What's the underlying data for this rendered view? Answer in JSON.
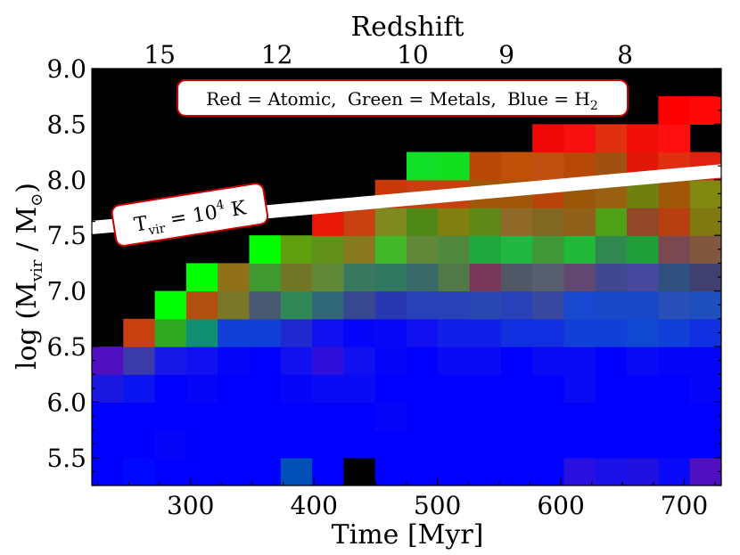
{
  "chart_data": {
    "type": "heatmap",
    "legend": {
      "red": "Red = Atomic,",
      "green": "Green = Metals,",
      "blue_prefix": "Blue = H",
      "blue_sub": "2"
    },
    "xlabel": "Time [Myr]",
    "ylabel_prefix": "log (M",
    "ylabel_sub": "vir",
    "ylabel_mid": " / M",
    "ylabel_sub2": "⊙",
    "ylabel_suffix": ")",
    "top_axis_title": "Redshift",
    "xlim": [
      220,
      730
    ],
    "ylim": [
      5.25,
      9.0
    ],
    "x_ticks": [
      300,
      400,
      500,
      600,
      700
    ],
    "y_ticks": [
      5.5,
      6.0,
      6.5,
      7.0,
      7.5,
      8.0,
      8.5,
      9.0
    ],
    "x_tick_labels": [
      "300",
      "400",
      "500",
      "600",
      "700"
    ],
    "y_tick_labels": [
      "5.5",
      "6.0",
      "6.5",
      "7.0",
      "7.5",
      "8.0",
      "8.5",
      "9.0"
    ],
    "redshift_ticks": [
      {
        "label": "15",
        "time": 275
      },
      {
        "label": "12",
        "time": 370
      },
      {
        "label": "10",
        "time": 480
      },
      {
        "label": "9",
        "time": 556
      },
      {
        "label": "8",
        "time": 652
      }
    ],
    "tvir_line": {
      "label_prefix": "T",
      "label_sub": "vir",
      "label_mid": " = 10",
      "label_sup": "4",
      "label_suffix": " K",
      "start": [
        220,
        7.57
      ],
      "end": [
        730,
        8.08
      ]
    },
    "grid": {
      "x0": 220,
      "dx": 25.5,
      "y0": 5.25,
      "dy": 0.25,
      "ncols": 20,
      "nrows": 15,
      "background": "#000000",
      "rows": [
        [
          "#0000ff",
          "#0008ff",
          "#0000ff",
          "#0000ff",
          "#0000ff",
          "#0000ff",
          "#0050b8",
          "#0000ff",
          "#000000",
          "#0000ff",
          "#0000ff",
          "#0000ff",
          "#0000ff",
          "#0000ff",
          "#0000ff",
          "#2a10e0",
          "#1a10e8",
          "#2010e0",
          "#0a0af8",
          "#5010c0"
        ],
        [
          "#0000ff",
          "#0000ff",
          "#0505fa",
          "#0000ff",
          "#0000ff",
          "#0000ff",
          "#0000ff",
          "#0000ff",
          "#0000ff",
          "#0000ff",
          "#0000ff",
          "#0000ff",
          "#0000ff",
          "#0000ff",
          "#0000ff",
          "#0000ff",
          "#0000ff",
          "#0000ff",
          "#0000ff",
          "#0000ff"
        ],
        [
          "#0000ff",
          "#0000ff",
          "#0000ff",
          "#0000ff",
          "#0000ff",
          "#0000ff",
          "#0000ff",
          "#0000ff",
          "#0000ff",
          "#0505fa",
          "#0000ff",
          "#0000ff",
          "#0000ff",
          "#0000ff",
          "#0000ff",
          "#0000ff",
          "#0000ff",
          "#0000ff",
          "#0000ff",
          "#0000ff"
        ],
        [
          "#1a18e0",
          "#0a14f0",
          "#0000ff",
          "#0505fa",
          "#0000ff",
          "#0000ff",
          "#0505fa",
          "#0a0af5",
          "#0a0af5",
          "#0000ff",
          "#0000ff",
          "#0000ff",
          "#0000ff",
          "#0000ff",
          "#0000ff",
          "#0a0af5",
          "#0000ff",
          "#0000ff",
          "#0000ff",
          "#0505fa"
        ],
        [
          "#5010c0",
          "#3a3aa8",
          "#1818e8",
          "#1010f0",
          "#0505fa",
          "#0000ff",
          "#1010f0",
          "#3010d8",
          "#1010f0",
          "#0505fa",
          "#0000ff",
          "#0a0af5",
          "#0a0af5",
          "#0000ff",
          "#0a0af5",
          "#0a0af5",
          "#0000ff",
          "#0a0af5",
          "#0505fa",
          "#0505fa"
        ],
        [
          null,
          "#c84010",
          "#30a820",
          "#109070",
          "#1040d8",
          "#1040d8",
          "#2028d0",
          "#1010f0",
          "#0505fa",
          "#0808f8",
          "#1010f0",
          "#1020e8",
          "#1020e8",
          "#1030e0",
          "#1030e0",
          "#1040d8",
          "#1040d8",
          "#1048d0",
          "#1040d8",
          "#1030e0"
        ],
        [
          null,
          null,
          "#00ff00",
          "#b05010",
          "#787828",
          "#485870",
          "#308858",
          "#306878",
          "#384890",
          "#2838b0",
          "#2840b8",
          "#2840b8",
          "#2848b0",
          "#2840b8",
          "#3848a0",
          "#1848d0",
          "#1848c8",
          "#1848c8",
          "#2850b8",
          "#2050c0"
        ],
        [
          null,
          null,
          null,
          "#00ff00",
          "#907018",
          "#409830",
          "#707828",
          "#608838",
          "#387860",
          "#307860",
          "#386868",
          "#507848",
          "#7a3858",
          "#505868",
          "#586070",
          "#604870",
          "#404890",
          "#4848a0",
          "#305080",
          "#404070"
        ],
        [
          null,
          null,
          null,
          null,
          null,
          "#00ff00",
          "#60a010",
          "#609018",
          "#887820",
          "#40b828",
          "#608838",
          "#508840",
          "#20a840",
          "#20b840",
          "#409838",
          "#20b838",
          "#308850",
          "#20a038",
          "#7a4850",
          "#805840"
        ],
        [
          null,
          null,
          null,
          null,
          null,
          null,
          null,
          "#e81808",
          "#c84010",
          "#808820",
          "#508818",
          "#808010",
          "#608818",
          "#906828",
          "#806820",
          "#906018",
          "#50a018",
          "#904828",
          "#b84010",
          "#807810"
        ],
        [
          null,
          null,
          null,
          null,
          null,
          null,
          null,
          null,
          null,
          "#c83808",
          "#c84010",
          "#c84010",
          "#a05808",
          "#a05808",
          "#b84408",
          "#985808",
          "#986010",
          "#708010",
          "#a05808",
          "#808810"
        ],
        [
          null,
          null,
          null,
          null,
          null,
          null,
          null,
          null,
          null,
          null,
          "#10e028",
          "#10e020",
          "#b84808",
          "#c05008",
          "#c05010",
          "#b84808",
          "#a05010",
          "#e01808",
          "#e03010",
          "#e02010"
        ],
        [
          null,
          null,
          null,
          null,
          null,
          null,
          null,
          null,
          null,
          null,
          null,
          null,
          null,
          null,
          "#f00808",
          "#f81010",
          "#e03010",
          "#f01008",
          "#ff1010",
          null
        ],
        [
          null,
          null,
          null,
          null,
          null,
          null,
          null,
          null,
          null,
          null,
          null,
          null,
          null,
          null,
          null,
          null,
          null,
          null,
          "#ff0000",
          "#ff0808"
        ],
        [
          null,
          null,
          null,
          null,
          null,
          null,
          null,
          null,
          null,
          null,
          null,
          null,
          null,
          null,
          null,
          null,
          null,
          null,
          null,
          null
        ]
      ]
    }
  }
}
